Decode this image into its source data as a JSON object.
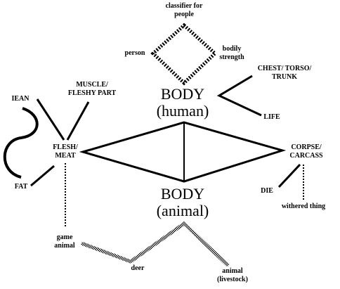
{
  "labels": {
    "classifier": [
      "classifier for",
      "people"
    ],
    "person": "person",
    "bodily": [
      "bodily",
      "strength"
    ],
    "body_human": [
      "BODY",
      "(human)"
    ],
    "chest": [
      "CHEST/ TORSO/",
      "TRUNK"
    ],
    "life": "LIFE",
    "muscle": [
      "MUSCLE/",
      "FLESHY PART"
    ],
    "lean": "IEAN",
    "flesh": [
      "FLESH/",
      "MEAT"
    ],
    "fat": "FAT",
    "corpse": [
      "CORPSE/",
      "CARCASS"
    ],
    "die": "DIE",
    "withered": "withered thing",
    "body_animal": [
      "BODY",
      "(animal)"
    ],
    "game": [
      "game",
      "animal"
    ],
    "deer": "deer",
    "animal_livestock": [
      "animal",
      "(livestock)"
    ]
  }
}
